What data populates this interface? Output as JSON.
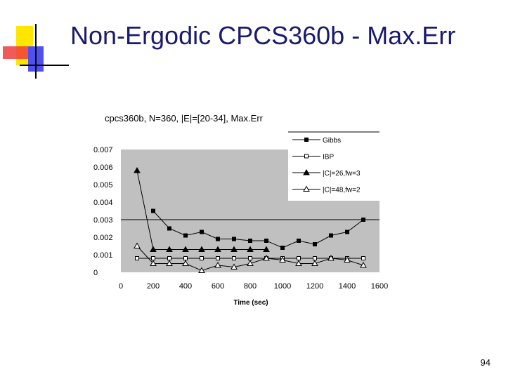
{
  "slide": {
    "title": "Non-Ergodic CPCS360b - Max.Err",
    "page_number": "94"
  },
  "chart_data": {
    "type": "line",
    "title": "cpcs360b, N=360, |E|=[20-34], Max.Err",
    "xlabel": "Time (sec)",
    "ylabel": "",
    "xlim": [
      0,
      1600
    ],
    "ylim": [
      0,
      0.007
    ],
    "x_ticks": [
      "0",
      "200",
      "400",
      "600",
      "800",
      "1000",
      "1200",
      "1400",
      "1600"
    ],
    "y_ticks": [
      "0",
      "0.001",
      "0.002",
      "0.003",
      "0.004",
      "0.005",
      "0.006",
      "0.007"
    ],
    "grid": "horizontal gridline at 0.003",
    "legend_position": "top-right",
    "plot_background": "#c0c0c0",
    "series": [
      {
        "name": "Gibbs",
        "marker": "filled-square",
        "x": [
          200,
          300,
          400,
          500,
          600,
          700,
          800,
          900,
          1000,
          1100,
          1200,
          1300,
          1400,
          1500
        ],
        "values": [
          0.0035,
          0.0025,
          0.0021,
          0.0023,
          0.0019,
          0.0019,
          0.0018,
          0.0018,
          0.0014,
          0.0018,
          0.0016,
          0.0021,
          0.0023,
          0.003
        ]
      },
      {
        "name": "IBP",
        "marker": "open-square",
        "x": [
          100,
          200,
          300,
          400,
          500,
          600,
          700,
          800,
          900,
          1000,
          1100,
          1200,
          1300,
          1400,
          1500
        ],
        "values": [
          0.0008,
          0.0008,
          0.0008,
          0.0008,
          0.0008,
          0.0008,
          0.0008,
          0.0008,
          0.0008,
          0.0008,
          0.0008,
          0.0008,
          0.0008,
          0.0008,
          0.0008
        ]
      },
      {
        "name": "|C|=26,fw=3",
        "marker": "filled-triangle",
        "x": [
          100,
          200,
          300,
          400,
          500,
          600,
          700,
          800,
          900
        ],
        "values": [
          0.0058,
          0.0013,
          0.0013,
          0.0013,
          0.0013,
          0.0013,
          0.0013,
          0.0013,
          0.0013
        ]
      },
      {
        "name": "|C|=48,fw=2",
        "marker": "open-triangle",
        "x": [
          100,
          200,
          300,
          400,
          500,
          600,
          700,
          800,
          900,
          1000,
          1100,
          1200,
          1300,
          1400,
          1500
        ],
        "values": [
          0.0015,
          0.0005,
          0.0005,
          0.0005,
          0.0001,
          0.0004,
          0.0003,
          0.0005,
          0.0008,
          0.0007,
          0.0005,
          0.0005,
          0.0008,
          0.0007,
          0.0004
        ]
      }
    ]
  }
}
